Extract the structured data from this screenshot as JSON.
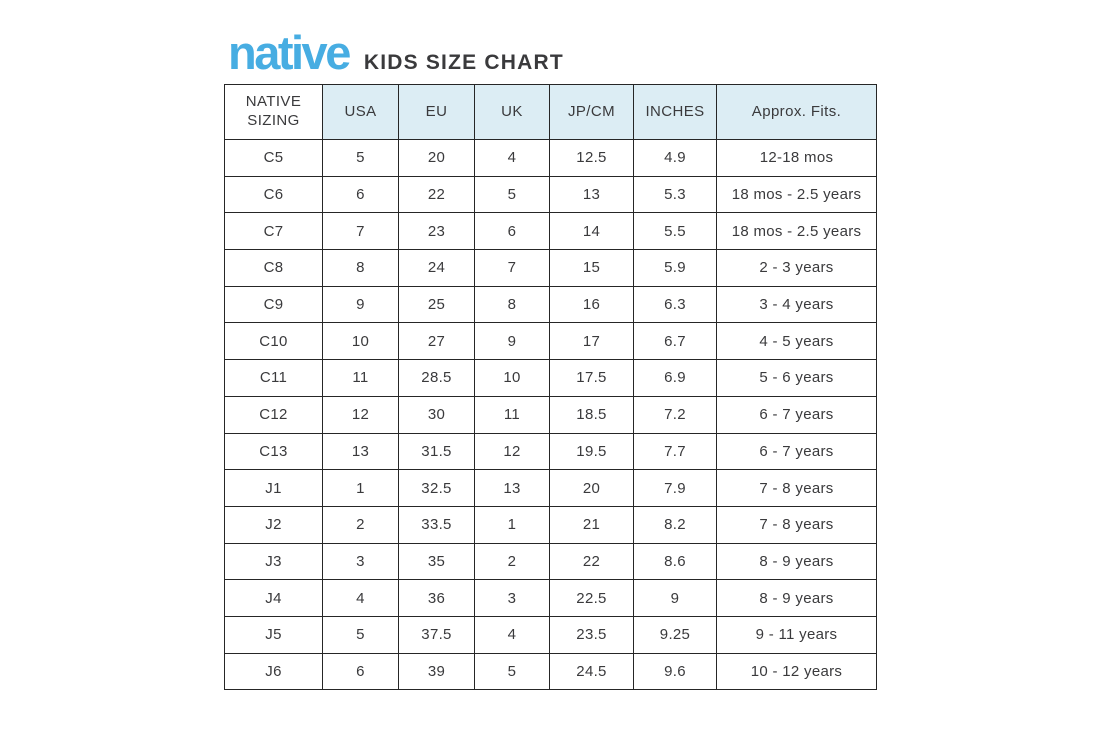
{
  "header": {
    "logo_text": "native",
    "logo_color": "#47ade2",
    "title": "KIDS SIZE CHART"
  },
  "chart_data": {
    "type": "table",
    "title": "KIDS SIZE CHART",
    "header_bg": "#dcedf4",
    "columns": [
      "NATIVE SIZING",
      "USA",
      "EU",
      "UK",
      "JP/CM",
      "INCHES",
      "Approx. Fits."
    ],
    "rows": [
      [
        "C5",
        "5",
        "20",
        "4",
        "12.5",
        "4.9",
        "12-18 mos"
      ],
      [
        "C6",
        "6",
        "22",
        "5",
        "13",
        "5.3",
        "18 mos - 2.5 years"
      ],
      [
        "C7",
        "7",
        "23",
        "6",
        "14",
        "5.5",
        "18 mos - 2.5 years"
      ],
      [
        "C8",
        "8",
        "24",
        "7",
        "15",
        "5.9",
        "2 - 3 years"
      ],
      [
        "C9",
        "9",
        "25",
        "8",
        "16",
        "6.3",
        "3 - 4 years"
      ],
      [
        "C10",
        "10",
        "27",
        "9",
        "17",
        "6.7",
        "4 - 5 years"
      ],
      [
        "C11",
        "11",
        "28.5",
        "10",
        "17.5",
        "6.9",
        "5 - 6 years"
      ],
      [
        "C12",
        "12",
        "30",
        "11",
        "18.5",
        "7.2",
        "6 - 7 years"
      ],
      [
        "C13",
        "13",
        "31.5",
        "12",
        "19.5",
        "7.7",
        "6 - 7 years"
      ],
      [
        "J1",
        "1",
        "32.5",
        "13",
        "20",
        "7.9",
        "7 - 8 years"
      ],
      [
        "J2",
        "2",
        "33.5",
        "1",
        "21",
        "8.2",
        "7 - 8 years"
      ],
      [
        "J3",
        "3",
        "35",
        "2",
        "22",
        "8.6",
        "8 - 9 years"
      ],
      [
        "J4",
        "4",
        "36",
        "3",
        "22.5",
        "9",
        "8 - 9 years"
      ],
      [
        "J5",
        "5",
        "37.5",
        "4",
        "23.5",
        "9.25",
        "9 - 11 years"
      ],
      [
        "J6",
        "6",
        "39",
        "5",
        "24.5",
        "9.6",
        "10 - 12 years"
      ]
    ]
  }
}
